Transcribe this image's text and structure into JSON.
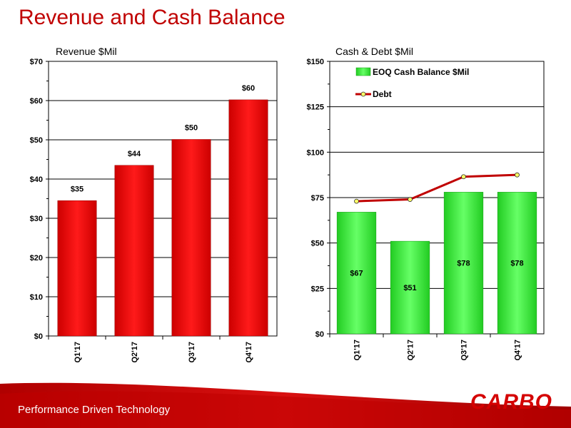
{
  "slide": {
    "title": "Revenue and Cash Balance",
    "tagline": "Performance Driven Technology",
    "logo_text": "CARBO"
  },
  "colors": {
    "title": "#c00000",
    "revenue_bar": "#ff0000",
    "cash_bar": "#33ee33",
    "debt_line": "#c00000",
    "debt_marker": "#ffff66",
    "footer": "#c00000"
  },
  "chart_data": [
    {
      "type": "bar",
      "title": "Revenue $Mil",
      "categories": [
        "Q1'17",
        "Q2'17",
        "Q3'17",
        "Q4'17"
      ],
      "values": [
        34.5,
        43.5,
        50.1,
        60.2
      ],
      "value_labels": [
        "$35",
        "$44",
        "$50",
        "$60"
      ],
      "yticks": [
        "$0",
        "$10",
        "$20",
        "$30",
        "$40",
        "$50",
        "$60",
        "$70"
      ],
      "ylim": [
        0,
        70
      ],
      "grid": true
    },
    {
      "type": "bar",
      "title": "Cash & Debt $Mil",
      "categories": [
        "Q1'17",
        "Q2'17",
        "Q3'17",
        "Q4'17"
      ],
      "yticks": [
        "$0",
        "$25",
        "$50",
        "$75",
        "$100",
        "$125",
        "$150"
      ],
      "ylim": [
        0,
        150
      ],
      "grid": true,
      "legend_position": "top-left",
      "series": [
        {
          "name": "EOQ Cash Balance $Mil",
          "type": "bar",
          "values": [
            67,
            51,
            78,
            78
          ],
          "value_labels": [
            "$67",
            "$51",
            "$78",
            "$78"
          ]
        },
        {
          "name": "Debt",
          "type": "line",
          "values": [
            73,
            74,
            86.5,
            87.5
          ]
        }
      ]
    }
  ]
}
